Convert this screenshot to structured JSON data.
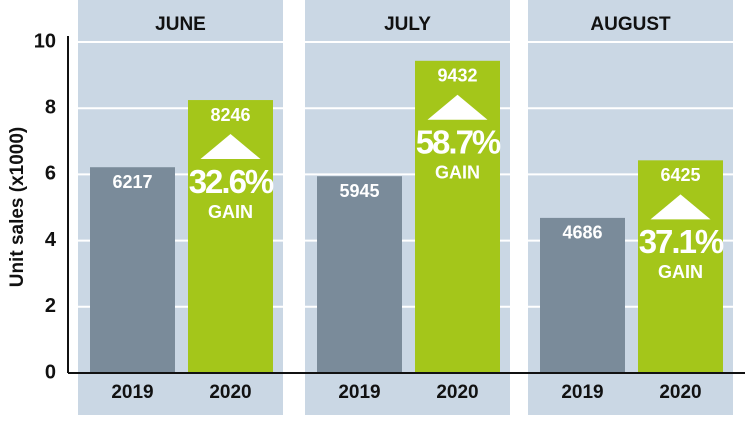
{
  "chart_data": {
    "type": "bar",
    "ylabel": "Unit sales (x1000)",
    "categories": [
      "JUNE",
      "JULY",
      "AUGUST"
    ],
    "series": [
      {
        "name": "2019",
        "color": "#7a8b9a",
        "values": [
          6.217,
          5.945,
          4.686
        ],
        "value_labels": [
          "6217",
          "5945",
          "4686"
        ]
      },
      {
        "name": "2020",
        "color": "#a4c61a",
        "values": [
          8.246,
          9.432,
          6.425
        ],
        "value_labels": [
          "8246",
          "9432",
          "6425"
        ]
      }
    ],
    "annotations": [
      "32.6%",
      "58.7%",
      "37.1%"
    ],
    "annotation_label": "GAIN",
    "ylim": [
      0,
      10
    ],
    "yticks": [
      0,
      2,
      4,
      6,
      8,
      10
    ],
    "grid": true,
    "panel_color": "#cad7e4"
  }
}
